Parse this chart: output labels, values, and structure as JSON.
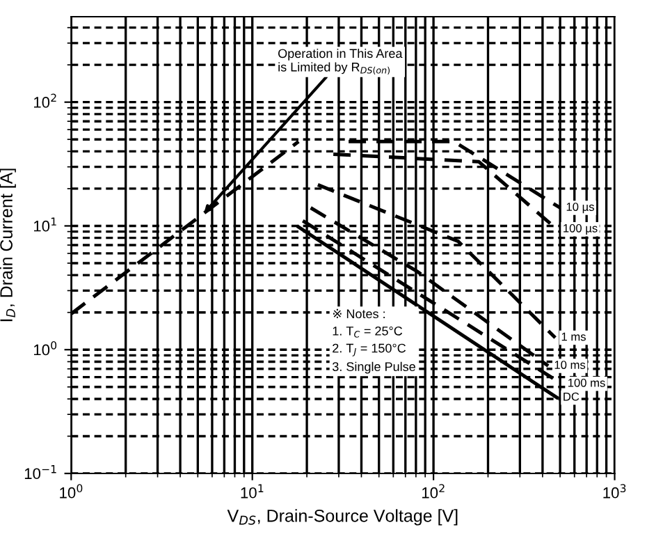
{
  "chart_data": {
    "type": "line",
    "xlabel": "V$_{DS}$, Drain-Source Voltage [V]",
    "ylabel": "I$_{D}$, Drain Current [A]",
    "log": "xy",
    "grid": true,
    "legend": false,
    "marker": "none",
    "xlim": [
      1,
      1000
    ],
    "ylim": [
      0.1,
      490
    ],
    "xticks": [
      {
        "value": 1,
        "label": "10$^{0}$"
      },
      {
        "value": 10,
        "label": "10$^{1}$"
      },
      {
        "value": 100,
        "label": "10$^{2}$"
      },
      {
        "value": 1000,
        "label": "10$^{3}$"
      }
    ],
    "yticks": [
      {
        "value": 0.1,
        "label": "10$^{−1}$"
      },
      {
        "value": 1,
        "label": "10$^{0}$"
      },
      {
        "value": 10,
        "label": "10$^{1}$"
      },
      {
        "value": 100,
        "label": "10$^{2}$"
      }
    ],
    "series": [
      {
        "color": "#000000",
        "line_style": "dashed",
        "x": [
          1,
          18
        ],
        "values": [
          1.95,
          48
        ]
      },
      {
        "name": "10 µs",
        "color": "#000000",
        "line_style": "dashed",
        "x": [
          34,
          130,
          500
        ],
        "values": [
          48,
          48,
          14
        ]
      },
      {
        "name": "100 µs",
        "color": "#000000",
        "line_style": "dashed",
        "x": [
          28,
          178,
          480
        ],
        "values": [
          38,
          33,
          9.4
        ]
      },
      {
        "name": "1 ms",
        "color": "#000000",
        "line_style": "dashed",
        "x": [
          23,
          137,
          470
        ],
        "values": [
          21.5,
          7.5,
          1.25
        ]
      },
      {
        "name": "10 ms",
        "color": "#000000",
        "line_style": "dashed",
        "x": [
          21,
          81,
          430
        ],
        "values": [
          14,
          4.3,
          0.74
        ]
      },
      {
        "name": "100 ms",
        "color": "#000000",
        "line_style": "dashed",
        "x": [
          19,
          510
        ],
        "values": [
          11,
          0.53
        ]
      },
      {
        "name": "DC",
        "color": "#000000",
        "line_style": "solid",
        "x": [
          18,
          480
        ],
        "values": [
          9.8,
          0.41
        ]
      }
    ],
    "annotations": [
      {
        "text": "Operation in This Area\nis Limited by R$_{DS(on)}$",
        "x": 5.4,
        "y": 12.6
      },
      "※ Notes :\n1. T$_{C}$ = 25°C\n2. T$_{J}$ = 150°C\n3. Single Pulse"
    ]
  }
}
